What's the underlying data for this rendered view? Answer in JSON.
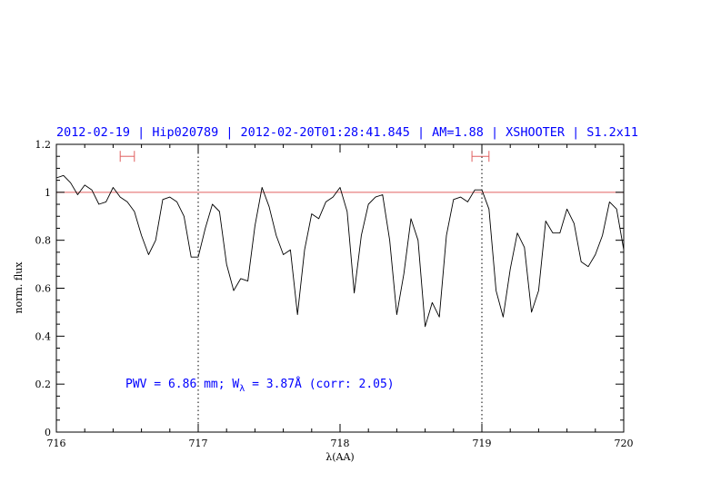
{
  "chart_data": {
    "type": "line",
    "title": "2012-02-19 | Hip020789 | 2012-02-20T01:28:41.845 | AM=1.88 | XSHOOTER | S1.2x11",
    "xlabel": "λ(AA)",
    "ylabel": "norm. flux",
    "xlim": [
      716,
      720
    ],
    "ylim": [
      0,
      1.2
    ],
    "x_ticks": [
      "716",
      "717",
      "718",
      "719",
      "720"
    ],
    "y_ticks": [
      "0",
      "0.2",
      "0.4",
      "0.6",
      "0.8",
      "1",
      "1.2"
    ],
    "reference_line": {
      "y": 1.0,
      "color": "#e06060"
    },
    "vertical_markers": [
      717.0,
      719.0
    ],
    "continuum_windows": [
      {
        "x0": 716.45,
        "x1": 716.55,
        "y": 1.15
      },
      {
        "x0": 718.93,
        "x1": 719.05,
        "y": 1.15
      }
    ],
    "annotation": {
      "prefix": "PWV = 6.86 mm; W",
      "subscript": "λ",
      "suffix": " = 3.87Å (corr: 2.05)"
    },
    "series": [
      {
        "color": "#000000",
        "x": [
          716.0,
          716.05,
          716.1,
          716.15,
          716.2,
          716.25,
          716.3,
          716.35,
          716.4,
          716.45,
          716.5,
          716.55,
          716.6,
          716.65,
          716.7,
          716.75,
          716.8,
          716.85,
          716.9,
          716.95,
          717.0,
          717.05,
          717.1,
          717.15,
          717.2,
          717.25,
          717.3,
          717.35,
          717.4,
          717.45,
          717.5,
          717.55,
          717.6,
          717.65,
          717.7,
          717.75,
          717.8,
          717.85,
          717.9,
          717.95,
          718.0,
          718.05,
          718.1,
          718.15,
          718.2,
          718.25,
          718.3,
          718.35,
          718.4,
          718.45,
          718.5,
          718.55,
          718.6,
          718.65,
          718.7,
          718.75,
          718.8,
          718.85,
          718.9,
          718.95,
          719.0,
          719.05,
          719.1,
          719.15,
          719.2,
          719.25,
          719.3,
          719.35,
          719.4,
          719.45,
          719.5,
          719.55,
          719.6,
          719.65,
          719.7,
          719.75,
          719.8,
          719.85,
          719.9,
          719.95,
          720.0
        ],
        "y": [
          1.06,
          1.07,
          1.04,
          0.99,
          1.03,
          1.01,
          0.95,
          0.96,
          1.02,
          0.98,
          0.96,
          0.92,
          0.82,
          0.74,
          0.8,
          0.97,
          0.98,
          0.96,
          0.9,
          0.73,
          0.73,
          0.85,
          0.95,
          0.92,
          0.7,
          0.59,
          0.64,
          0.63,
          0.86,
          1.02,
          0.94,
          0.82,
          0.74,
          0.76,
          0.49,
          0.76,
          0.91,
          0.89,
          0.96,
          0.98,
          1.02,
          0.92,
          0.58,
          0.82,
          0.95,
          0.98,
          0.99,
          0.8,
          0.49,
          0.66,
          0.89,
          0.8,
          0.44,
          0.54,
          0.48,
          0.82,
          0.97,
          0.98,
          0.96,
          1.01,
          1.01,
          0.93,
          0.59,
          0.48,
          0.68,
          0.83,
          0.77,
          0.5,
          0.59,
          0.88,
          0.83,
          0.83,
          0.93,
          0.87,
          0.71,
          0.69,
          0.74,
          0.82,
          0.96,
          0.93,
          0.76
        ]
      }
    ]
  }
}
